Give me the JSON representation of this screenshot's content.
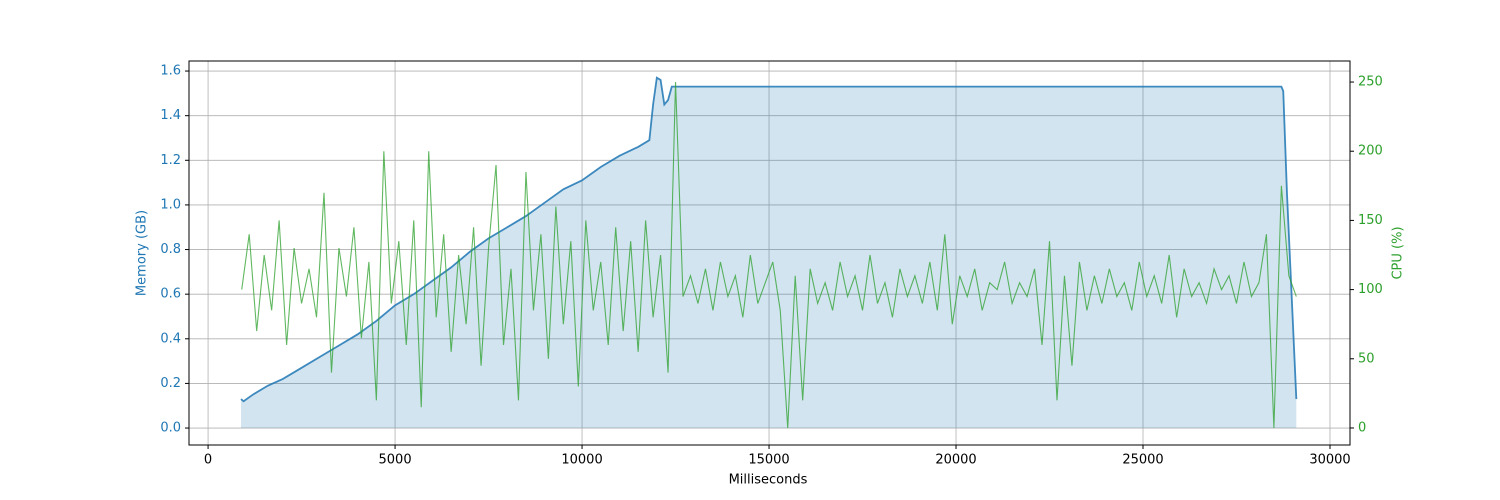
{
  "chart_data": {
    "type": "line",
    "xlabel": "Milliseconds",
    "ylabel": "Memory (GB)",
    "y2label": "CPU (%)",
    "xlim": [
      -510,
      30535
    ],
    "xticks": [
      0,
      5000,
      10000,
      15000,
      20000,
      25000,
      30000
    ],
    "ylim": [
      -0.076,
      1.645
    ],
    "yticks": [
      {
        "value": 0,
        "label": "0.0"
      },
      0.2,
      0.4,
      0.6,
      0.8,
      {
        "value": 1,
        "label": "1.0"
      },
      1.2,
      1.4,
      1.6
    ],
    "y2lim": [
      -12.3,
      265.2
    ],
    "y2ticks": [
      0,
      50,
      100,
      150,
      200,
      250
    ],
    "grid": true,
    "ycolor": "#1f77b4",
    "y2color": "#2ca02c",
    "series": [
      {
        "color": "#1f77b4",
        "fill": true,
        "x": [
          880,
          950,
          1200,
          1600,
          2000,
          2500,
          3000,
          3500,
          4000,
          4500,
          5000,
          5500,
          6000,
          6500,
          7000,
          7500,
          8000,
          8500,
          9000,
          9500,
          10000,
          10500,
          11000,
          11500,
          11800,
          11900,
          12000,
          12100,
          12200,
          12300,
          12400,
          12500,
          20000,
          28700,
          28750,
          28850,
          29000,
          29100
        ],
        "values": [
          0.13,
          0.12,
          0.15,
          0.19,
          0.22,
          0.27,
          0.32,
          0.37,
          0.42,
          0.48,
          0.55,
          0.6,
          0.66,
          0.72,
          0.79,
          0.85,
          0.9,
          0.95,
          1.01,
          1.07,
          1.11,
          1.17,
          1.22,
          1.26,
          1.29,
          1.45,
          1.57,
          1.56,
          1.45,
          1.47,
          1.53,
          1.53,
          1.53,
          1.53,
          1.51,
          1.05,
          0.5,
          0.13
        ]
      },
      {
        "color": "#2ca02c",
        "axis": "y2",
        "x": [
          900,
          1100,
          1300,
          1500,
          1700,
          1900,
          2100,
          2300,
          2500,
          2700,
          2900,
          3100,
          3300,
          3500,
          3700,
          3900,
          4100,
          4300,
          4500,
          4700,
          4900,
          5100,
          5300,
          5500,
          5700,
          5900,
          6100,
          6300,
          6500,
          6700,
          6900,
          7100,
          7300,
          7500,
          7700,
          7900,
          8100,
          8300,
          8500,
          8700,
          8900,
          9100,
          9300,
          9500,
          9700,
          9900,
          10100,
          10300,
          10500,
          10700,
          10900,
          11100,
          11300,
          11500,
          11700,
          11900,
          12100,
          12300,
          12500,
          12700,
          12900,
          13100,
          13300,
          13500,
          13700,
          13900,
          14100,
          14300,
          14500,
          14700,
          14900,
          15100,
          15300,
          15500,
          15700,
          15900,
          16100,
          16300,
          16500,
          16700,
          16900,
          17100,
          17300,
          17500,
          17700,
          17900,
          18100,
          18300,
          18500,
          18700,
          18900,
          19100,
          19300,
          19500,
          19700,
          19900,
          20100,
          20300,
          20500,
          20700,
          20900,
          21100,
          21300,
          21500,
          21700,
          21900,
          22100,
          22300,
          22500,
          22700,
          22900,
          23100,
          23300,
          23500,
          23700,
          23900,
          24100,
          24300,
          24500,
          24700,
          24900,
          25100,
          25300,
          25500,
          25700,
          25900,
          26100,
          26300,
          26500,
          26700,
          26900,
          27100,
          27300,
          27500,
          27700,
          27900,
          28100,
          28300,
          28500,
          28700,
          28900,
          29100
        ],
        "values": [
          100,
          140,
          70,
          125,
          85,
          150,
          60,
          130,
          90,
          115,
          80,
          170,
          40,
          130,
          95,
          145,
          65,
          120,
          20,
          200,
          90,
          135,
          60,
          150,
          15,
          200,
          80,
          140,
          55,
          125,
          75,
          145,
          45,
          130,
          190,
          60,
          115,
          20,
          185,
          85,
          140,
          50,
          160,
          75,
          135,
          30,
          150,
          85,
          120,
          60,
          145,
          70,
          135,
          55,
          150,
          80,
          125,
          40,
          250,
          95,
          110,
          90,
          115,
          85,
          120,
          95,
          110,
          80,
          125,
          90,
          105,
          120,
          85,
          0,
          110,
          20,
          115,
          90,
          105,
          85,
          120,
          95,
          110,
          85,
          125,
          90,
          105,
          80,
          115,
          95,
          110,
          90,
          120,
          85,
          140,
          75,
          110,
          95,
          115,
          85,
          105,
          100,
          120,
          90,
          105,
          95,
          115,
          60,
          135,
          20,
          110,
          45,
          120,
          85,
          110,
          90,
          115,
          95,
          105,
          85,
          120,
          95,
          110,
          90,
          125,
          80,
          115,
          95,
          105,
          90,
          115,
          100,
          110,
          90,
          120,
          95,
          105,
          140,
          0,
          175,
          110,
          95
        ]
      }
    ]
  }
}
